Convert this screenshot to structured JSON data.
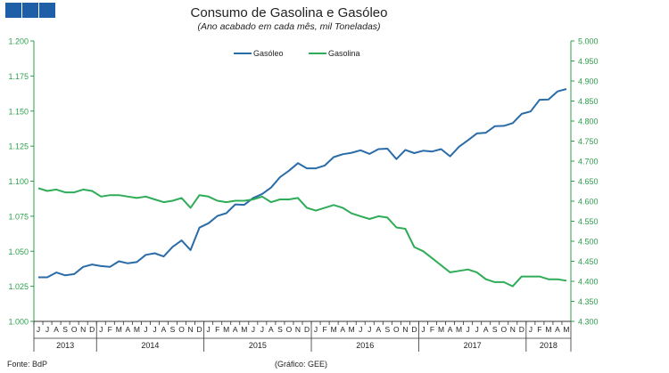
{
  "header": {
    "title": "Consumo de Gasolina e Gasóleo",
    "subtitle": "(Ano acabado em cada mês,  mil Toneladas)"
  },
  "footer": {
    "source": "Fonte: BdP",
    "credit": "(Gráfico: GEE)"
  },
  "colors": {
    "logo": "#1f5fa8",
    "axis": "#2e9e4e",
    "gasoleo": "#2a6ca8",
    "gasolina": "#2eac57"
  },
  "chart_data": {
    "type": "line",
    "legend": [
      "Gasóleo",
      "Gasolina"
    ],
    "legend_position": "top-center",
    "grid": false,
    "x": [
      "J",
      "J",
      "A",
      "S",
      "O",
      "N",
      "D",
      "J",
      "F",
      "M",
      "A",
      "M",
      "J",
      "J",
      "A",
      "S",
      "O",
      "N",
      "D",
      "J",
      "F",
      "M",
      "A",
      "M",
      "J",
      "J",
      "A",
      "S",
      "O",
      "N",
      "D",
      "J",
      "F",
      "M",
      "A",
      "M",
      "J",
      "J",
      "A",
      "S",
      "O",
      "N",
      "D",
      "J",
      "F",
      "M",
      "A",
      "M",
      "J",
      "J",
      "A",
      "S",
      "O",
      "N",
      "D",
      "J",
      "F",
      "M",
      "A",
      "M"
    ],
    "years": [
      {
        "label": "2013",
        "start": 0,
        "end": 6
      },
      {
        "label": "2014",
        "start": 7,
        "end": 18
      },
      {
        "label": "2015",
        "start": 19,
        "end": 30
      },
      {
        "label": "2016",
        "start": 31,
        "end": 42
      },
      {
        "label": "2017",
        "start": 43,
        "end": 54
      },
      {
        "label": "2018",
        "start": 55,
        "end": 59
      }
    ],
    "y_left": {
      "ylim": [
        1.0,
        1.2
      ],
      "ticks": [
        "1.000",
        "1.025",
        "1.050",
        "1.075",
        "1.100",
        "1.125",
        "1.150",
        "1.175",
        "1.200"
      ]
    },
    "y_right": {
      "ylim": [
        4300,
        5000
      ],
      "ticks": [
        "4.300",
        "4.350",
        "4.400",
        "4.450",
        "4.500",
        "4.550",
        "4.600",
        "4.650",
        "4.700",
        "4.750",
        "4.800",
        "4.850",
        "4.900",
        "4.950",
        "5.000"
      ]
    },
    "series": [
      {
        "name": "Gasóleo",
        "axis": "right",
        "values": [
          4410,
          4410,
          4422,
          4415,
          4418,
          4436,
          4442,
          4438,
          4436,
          4450,
          4445,
          4448,
          4466,
          4470,
          4462,
          4486,
          4502,
          4478,
          4534,
          4545,
          4563,
          4570,
          4592,
          4591,
          4608,
          4618,
          4634,
          4660,
          4676,
          4695,
          4682,
          4682,
          4689,
          4710,
          4717,
          4721,
          4727,
          4718,
          4730,
          4731,
          4705,
          4728,
          4720,
          4726,
          4724,
          4730,
          4712,
          4736,
          4752,
          4769,
          4771,
          4787,
          4788,
          4795,
          4818,
          4824,
          4853,
          4854,
          4874,
          4880
        ]
      },
      {
        "name": "Gasolina",
        "axis": "left",
        "values": [
          1.095,
          1.093,
          1.094,
          1.092,
          1.092,
          1.094,
          1.093,
          1.089,
          1.09,
          1.09,
          1.089,
          1.088,
          1.089,
          1.087,
          1.085,
          1.086,
          1.088,
          1.081,
          1.09,
          1.089,
          1.086,
          1.085,
          1.086,
          1.086,
          1.087,
          1.089,
          1.085,
          1.087,
          1.087,
          1.088,
          1.081,
          1.079,
          1.081,
          1.083,
          1.081,
          1.077,
          1.075,
          1.073,
          1.075,
          1.074,
          1.067,
          1.066,
          1.053,
          1.05,
          1.045,
          1.04,
          1.035,
          1.036,
          1.037,
          1.035,
          1.03,
          1.028,
          1.028,
          1.025,
          1.032,
          1.032,
          1.032,
          1.03,
          1.03,
          1.029
        ]
      }
    ]
  }
}
